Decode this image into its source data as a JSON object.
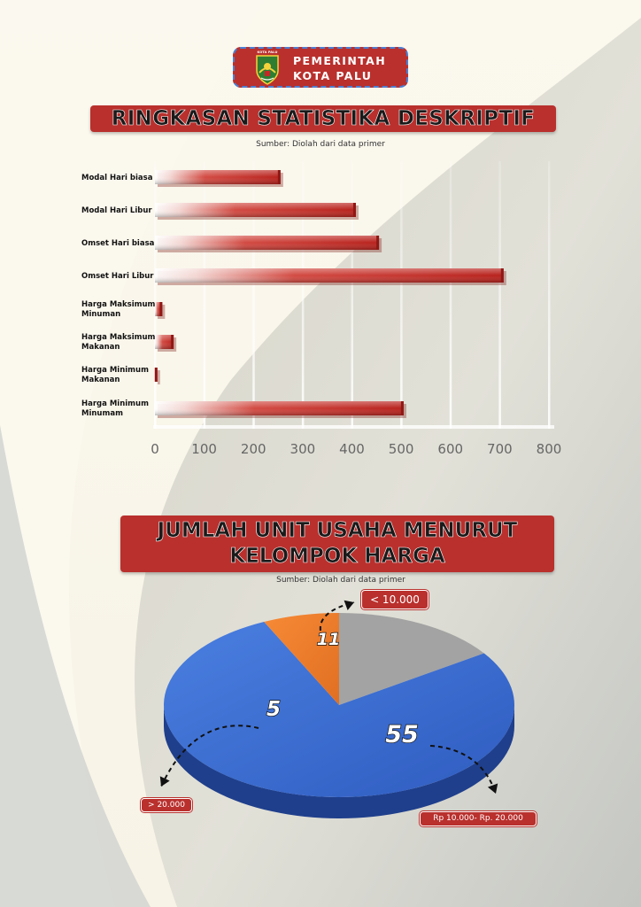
{
  "header": {
    "emblem_label": "KOTA PALU",
    "line1": "PEMERINTAH",
    "line2": "KOTA PALU"
  },
  "colors": {
    "brand_red": "#b9302d",
    "pie_blue": "#3a6bd0",
    "pie_orange": "#ef7d2e",
    "pie_gray": "#9e9e9e"
  },
  "section1": {
    "title": "RINGKASAN STATISTIKA DESKRIPTIF",
    "source": "Sumber: Diolah dari data primer"
  },
  "section2": {
    "title_line1": "JUMLAH UNIT USAHA MENURUT",
    "title_line2": "KELOMPOK HARGA",
    "source": "Sumber: Diolah dari data primer"
  },
  "chart_data": [
    {
      "type": "bar",
      "orientation": "horizontal",
      "categories": [
        "Modal Hari biasa",
        "Modal Hari Libur",
        "Omset Hari biasa",
        "Omset Hari Libur",
        "Harga Maksimum Minuman",
        "Harga Maksimum Makanan",
        "Harga Minimum Makanan",
        "Harga Minimum Minumam"
      ],
      "values": [
        255,
        408,
        455,
        708,
        15,
        38,
        5,
        505
      ],
      "xlim": [
        0,
        800
      ],
      "xticks": [
        0,
        100,
        200,
        300,
        400,
        500,
        600,
        700,
        800
      ],
      "grid": true
    },
    {
      "type": "pie",
      "labels": [
        "< 10.000",
        "Rp 10.000- Rp. 20.000",
        "> 20.000"
      ],
      "values": [
        11,
        55,
        5
      ],
      "value_labels": [
        "11",
        "55",
        "5"
      ]
    }
  ]
}
